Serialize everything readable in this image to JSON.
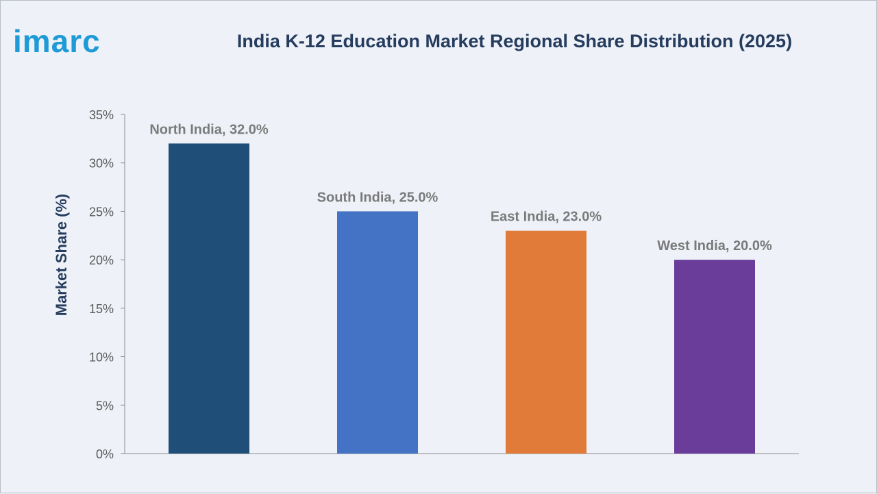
{
  "brand": {
    "logo_text": "imarc",
    "color": "#1e9ad6"
  },
  "chart_data": {
    "type": "bar",
    "title": "India K-12 Education Market Regional Share Distribution (2025)",
    "xlabel": "",
    "ylabel": "Market Share (%)",
    "ylim": [
      0,
      35
    ],
    "yticks": [
      0,
      5,
      10,
      15,
      20,
      25,
      30,
      35
    ],
    "ytick_labels": [
      "0%",
      "5%",
      "10%",
      "15%",
      "20%",
      "25%",
      "30%",
      "35%"
    ],
    "categories": [
      "North India",
      "South India",
      "East India",
      "West India"
    ],
    "values": [
      32.0,
      25.0,
      23.0,
      20.0
    ],
    "data_labels": [
      "North India, 32.0%",
      "South India, 25.0%",
      "East India, 23.0%",
      "West India, 20.0%"
    ],
    "colors": [
      "#1f4e79",
      "#4472c4",
      "#e07b39",
      "#6a3d9a"
    ],
    "grid": false,
    "legend": "none"
  }
}
